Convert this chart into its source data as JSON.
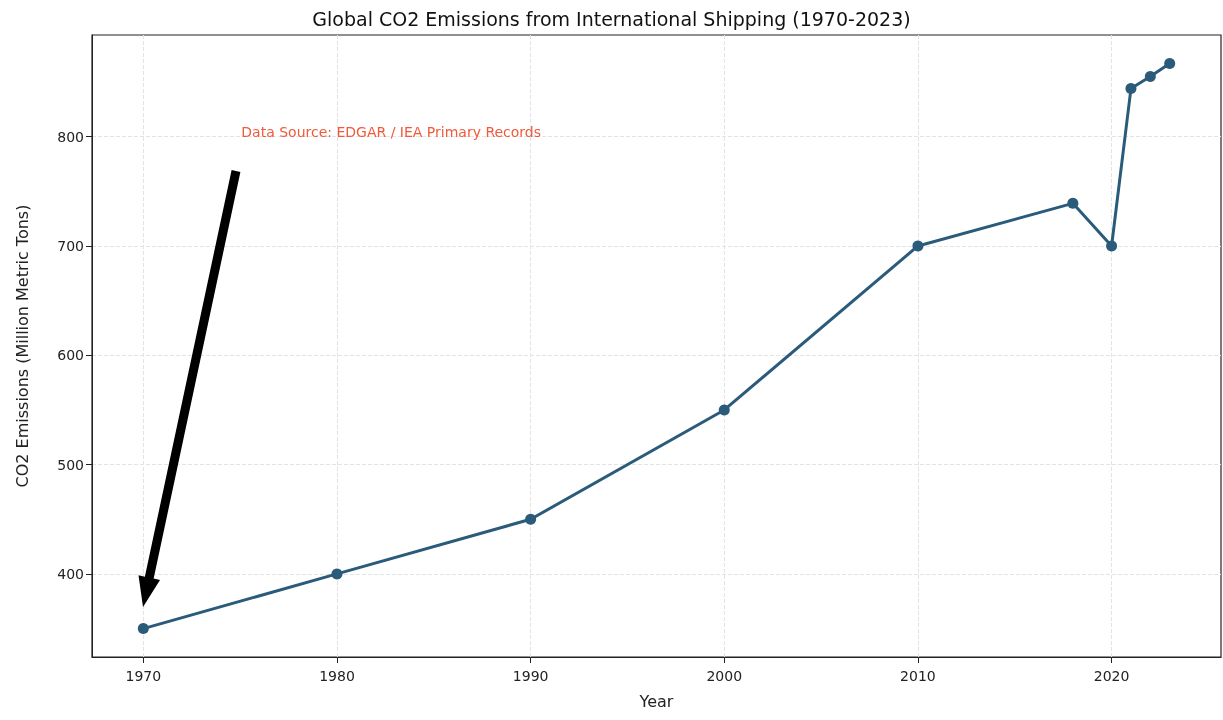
{
  "chart_data": {
    "type": "line",
    "title": "Global CO2 Emissions from International Shipping (1970-2023)",
    "xlabel": "Year",
    "ylabel": "CO2 Emissions (Million Metric Tons)",
    "x": [
      1970,
      1980,
      1990,
      2000,
      2010,
      2018,
      2020,
      2021,
      2022,
      2023
    ],
    "series": [
      {
        "color": "#2b5b7b",
        "values": [
          350,
          400,
          450,
          550,
          700,
          739,
          700,
          844,
          855,
          867
        ]
      }
    ],
    "xlim": [
      1967.35,
      2025.65
    ],
    "xticks": [
      1970,
      1980,
      1990,
      2000,
      2010,
      2020
    ],
    "ylim": [
      324,
      893
    ],
    "yticks": [
      400,
      500,
      600,
      700,
      800
    ],
    "annotations": [
      "Data Source: EDGAR / IEA Primary Records"
    ],
    "grid": true,
    "marker": "circle",
    "line_style": "solid"
  }
}
